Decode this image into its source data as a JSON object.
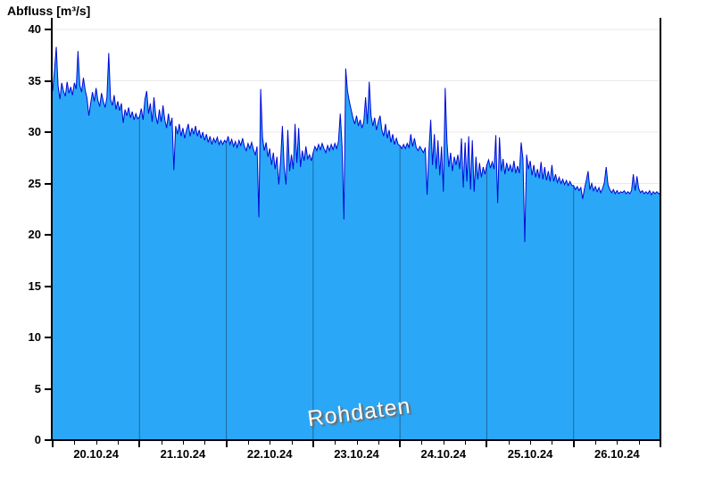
{
  "title": "Abfluss [m³/s]",
  "watermark": "Rohdaten",
  "colors": {
    "area_fill": "#2AA8F7",
    "line": "#0008D8",
    "h_gridline": "#E9E9E9",
    "day_line": "rgba(15,40,75,0.5)",
    "axis": "#000000",
    "watermark_text": "#FCFCFC",
    "watermark_shadow": "#6A6A6A"
  },
  "chart_data": {
    "type": "area",
    "title": "Abfluss [m³/s]",
    "ylabel": "Abfluss [m³/s]",
    "xlabel": "",
    "annotation": "Rohdaten",
    "legend": "none",
    "grid": {
      "horizontal": true,
      "vertical_day_lines": true
    },
    "ylim": [
      0,
      40
    ],
    "y_ticks": [
      0,
      5,
      10,
      15,
      20,
      25,
      30,
      35,
      40
    ],
    "x_day_labels": [
      "20.10.24",
      "21.10.24",
      "22.10.24",
      "23.10.24",
      "24.10.24",
      "25.10.24",
      "26.10.24"
    ],
    "x_start": "20.10.24 00:00",
    "x_span_hours": 168,
    "x_minor_tick_hours": 6,
    "step_hours": 0.5,
    "values_30min": [
      34.0,
      36.0,
      38.3,
      34.5,
      33.2,
      34.8,
      34.0,
      33.5,
      34.9,
      33.8,
      34.4,
      33.6,
      34.8,
      34.2,
      37.9,
      34.6,
      33.9,
      35.3,
      34.1,
      33.3,
      31.6,
      32.8,
      33.9,
      33.0,
      34.3,
      33.1,
      32.5,
      33.8,
      33.0,
      32.4,
      33.4,
      37.7,
      33.2,
      32.6,
      33.6,
      32.2,
      33.0,
      32.1,
      32.8,
      30.9,
      32.2,
      31.6,
      32.4,
      31.4,
      32.0,
      31.2,
      31.8,
      31.3,
      31.5,
      32.3,
      31.2,
      33.2,
      34.0,
      31.8,
      32.8,
      31.0,
      33.4,
      31.6,
      30.8,
      32.2,
      31.0,
      32.6,
      31.2,
      30.4,
      31.8,
      30.6,
      31.4,
      26.3,
      30.6,
      29.8,
      30.8,
      29.6,
      30.4,
      29.4,
      30.2,
      30.8,
      29.6,
      30.4,
      29.8,
      30.6,
      29.6,
      30.2,
      29.4,
      30.0,
      29.2,
      29.8,
      29.0,
      29.6,
      28.8,
      29.4,
      29.0,
      29.5,
      28.8,
      29.2,
      28.8,
      29.2,
      29.0,
      29.6,
      28.8,
      29.3,
      28.6,
      29.1,
      28.5,
      29.2,
      28.7,
      29.4,
      28.6,
      28.2,
      28.9,
      28.4,
      29.0,
      28.3,
      27.8,
      28.6,
      21.7,
      34.2,
      29.5,
      28.2,
      29.0,
      27.6,
      28.4,
      26.8,
      28.0,
      26.4,
      27.6,
      24.9,
      27.2,
      30.6,
      26.6,
      24.9,
      30.2,
      26.2,
      27.8,
      26.4,
      30.8,
      27.0,
      30.4,
      26.6,
      28.2,
      27.2,
      28.6,
      27.4,
      27.8,
      27.2,
      28.0,
      28.6,
      28.2,
      28.8,
      28.3,
      28.9,
      28.4,
      28.0,
      28.7,
      28.2,
      28.8,
      28.3,
      28.9,
      28.4,
      29.1,
      31.8,
      28.6,
      21.5,
      36.2,
      34.0,
      33.0,
      32.2,
      31.4,
      30.8,
      31.6,
      30.6,
      31.2,
      30.4,
      31.0,
      33.4,
      30.8,
      34.9,
      31.6,
      30.6,
      31.4,
      30.2,
      31.0,
      31.6,
      30.2,
      29.6,
      30.8,
      29.4,
      30.2,
      29.0,
      29.8,
      28.8,
      29.4,
      28.8,
      28.7,
      28.4,
      28.8,
      28.4,
      28.9,
      28.5,
      29.8,
      28.6,
      29.4,
      28.5,
      28.2,
      28.6,
      28.3,
      28.0,
      28.5,
      23.9,
      28.2,
      31.2,
      26.8,
      29.8,
      26.4,
      29.2,
      25.8,
      28.6,
      24.2,
      34.3,
      29.0,
      26.6,
      28.0,
      26.2,
      27.6,
      26.8,
      27.8,
      26.4,
      29.4,
      24.6,
      29.0,
      25.2,
      29.6,
      24.4,
      29.2,
      24.2,
      27.6,
      25.4,
      27.0,
      25.6,
      26.6,
      25.9,
      26.8,
      27.3,
      26.5,
      27.1,
      26.4,
      29.7,
      23.1,
      29.5,
      26.2,
      27.4,
      25.9,
      27.0,
      26.2,
      26.8,
      26.1,
      27.2,
      26.0,
      26.7,
      26.0,
      29.0,
      27.4,
      19.3,
      27.8,
      26.4,
      27.2,
      25.8,
      26.8,
      25.6,
      26.4,
      25.5,
      27.1,
      25.4,
      26.6,
      25.3,
      26.2,
      25.2,
      26.8,
      25.2,
      25.9,
      25.1,
      25.6,
      25.0,
      25.4,
      24.9,
      25.3,
      24.8,
      25.2,
      24.8,
      24.8,
      24.4,
      24.7,
      24.3,
      24.6,
      23.5,
      24.5,
      25.3,
      26.2,
      24.4,
      25.0,
      24.3,
      24.7,
      24.2,
      24.6,
      24.1,
      24.5,
      25.1,
      26.6,
      24.9,
      24.4,
      24.1,
      24.4,
      24.0,
      24.3,
      24.0,
      24.2,
      24.1,
      24.3,
      24.0,
      24.2,
      24.0,
      24.3,
      25.9,
      24.3,
      25.7,
      24.5,
      24.1,
      24.3,
      24.0,
      24.2,
      24.0,
      24.3,
      23.9,
      24.2,
      24.0,
      24.2,
      24.0,
      24.1
    ]
  }
}
